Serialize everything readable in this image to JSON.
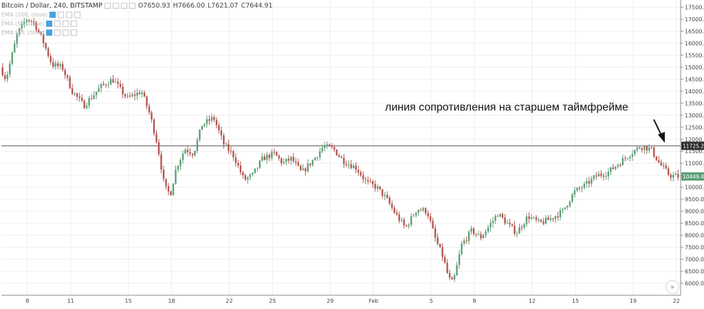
{
  "legend": {
    "title": "Bitcoin / Dollar, 240, BITSTAMP",
    "open": "O7650.93",
    "high": "H7666.00",
    "low": "L7621.07",
    "close": "C7644.91",
    "indicators": [
      "EMA (200, close)",
      "EMA (50, close)",
      "EMA (20, close)"
    ]
  },
  "annotation": {
    "text": "линия сопротивления на старшем таймфрейме",
    "arrow_icon": "arrow-down-right-icon"
  },
  "zoom_button": {
    "label": "»",
    "icon": "double-chevron-icon"
  },
  "colors": {
    "up": "#5c9e76",
    "down": "#b3554e",
    "grid": "#eeeeee",
    "resistance": "#555555",
    "price_tag": "#2b2b2b",
    "last_tag": "#5c9e76"
  },
  "chart_data": {
    "type": "candlestick",
    "title": "Bitcoin / Dollar, 240, BITSTAMP",
    "y_axis": {
      "min": 5500,
      "max": 17800,
      "ticks": [
        "17500.00",
        "17000.00",
        "16500.00",
        "16000.00",
        "15500.00",
        "15000.00",
        "14500.00",
        "14000.00",
        "13500.00",
        "13000.00",
        "12500.00",
        "12000.00",
        "11500.00",
        "11000.00",
        "10500.00",
        "10000.00",
        "9500.00",
        "9000.00",
        "8500.00",
        "8000.00",
        "7500.00",
        "7000.00",
        "6500.00",
        "6000.00"
      ]
    },
    "x_axis": {
      "labels": [
        "8",
        "11",
        "15",
        "18",
        "22",
        "25",
        "29",
        "Feb",
        "5",
        "8",
        "12",
        "15",
        "19",
        "22"
      ],
      "label_days": [
        8,
        11,
        15,
        18,
        22,
        25,
        29,
        32,
        36,
        39,
        43,
        46,
        50,
        53
      ],
      "day_start": 6.2,
      "day_end": 53.2
    },
    "resistance_level": "11725.20",
    "last_price": "10449.40",
    "anchors": [
      [
        6.2,
        15000
      ],
      [
        6.6,
        14500
      ],
      [
        7.4,
        16400
      ],
      [
        8.0,
        17000
      ],
      [
        8.5,
        16900
      ],
      [
        9.1,
        16200
      ],
      [
        9.8,
        15100
      ],
      [
        10.5,
        15000
      ],
      [
        11.2,
        14000
      ],
      [
        12.0,
        13400
      ],
      [
        13.2,
        14200
      ],
      [
        14.0,
        14500
      ],
      [
        15.0,
        13700
      ],
      [
        16.0,
        14000
      ],
      [
        16.6,
        13000
      ],
      [
        17.1,
        11800
      ],
      [
        17.6,
        10000
      ],
      [
        18.0,
        9700
      ],
      [
        18.4,
        10800
      ],
      [
        19.0,
        11600
      ],
      [
        19.6,
        11400
      ],
      [
        20.2,
        12600
      ],
      [
        21.0,
        12900
      ],
      [
        21.7,
        11800
      ],
      [
        22.4,
        11300
      ],
      [
        23.1,
        10300
      ],
      [
        23.7,
        10500
      ],
      [
        24.4,
        11200
      ],
      [
        25.2,
        11400
      ],
      [
        25.8,
        11000
      ],
      [
        26.4,
        11200
      ],
      [
        27.1,
        10600
      ],
      [
        28.0,
        11200
      ],
      [
        28.6,
        11700
      ],
      [
        29.3,
        11600
      ],
      [
        30.0,
        11100
      ],
      [
        30.9,
        10800
      ],
      [
        31.6,
        10200
      ],
      [
        32.3,
        10000
      ],
      [
        33.0,
        9500
      ],
      [
        33.6,
        8900
      ],
      [
        34.3,
        8300
      ],
      [
        35.1,
        9100
      ],
      [
        35.8,
        9000
      ],
      [
        36.4,
        7800
      ],
      [
        36.9,
        7100
      ],
      [
        37.3,
        6200
      ],
      [
        37.6,
        6000
      ],
      [
        38.2,
        7600
      ],
      [
        38.9,
        8200
      ],
      [
        39.5,
        7900
      ],
      [
        40.0,
        8300
      ],
      [
        40.7,
        8900
      ],
      [
        41.5,
        8400
      ],
      [
        42.0,
        8100
      ],
      [
        42.8,
        8800
      ],
      [
        43.6,
        8500
      ],
      [
        44.4,
        8700
      ],
      [
        45.2,
        9000
      ],
      [
        46.0,
        9800
      ],
      [
        46.8,
        10100
      ],
      [
        47.6,
        10500
      ],
      [
        48.3,
        10600
      ],
      [
        49.1,
        11000
      ],
      [
        49.9,
        11400
      ],
      [
        50.6,
        11700
      ],
      [
        51.3,
        11600
      ],
      [
        51.9,
        11000
      ],
      [
        52.6,
        10500
      ],
      [
        53.2,
        10449
      ]
    ]
  }
}
